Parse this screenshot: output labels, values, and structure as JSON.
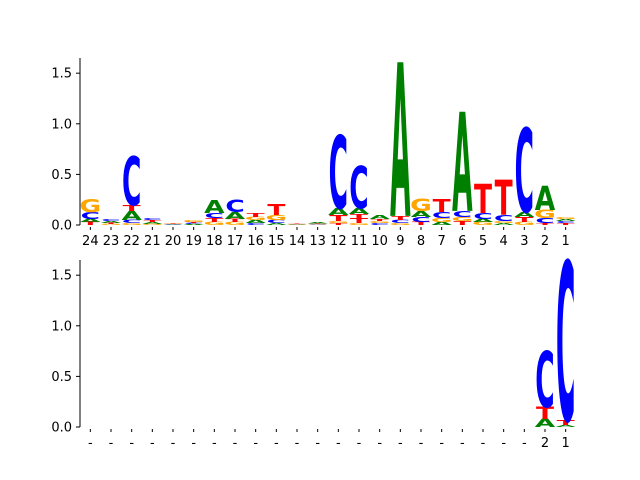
{
  "colors": {
    "A": "#008000",
    "C": "#0000ff",
    "G": "#ffa500",
    "T": "#ff0000"
  },
  "chart_data": [
    {
      "type": "sequence-logo",
      "ylim": [
        0,
        1.65
      ],
      "y_ticks": [
        "0.0",
        "0.5",
        "1.0",
        "1.5"
      ],
      "y_tick_values": [
        0,
        0.5,
        1.0,
        1.5
      ],
      "categories": [
        "24",
        "23",
        "22",
        "21",
        "20",
        "19",
        "18",
        "17",
        "16",
        "15",
        "14",
        "13",
        "12",
        "11",
        "10",
        "9",
        "8",
        "7",
        "6",
        "5",
        "4",
        "3",
        "2",
        "1"
      ],
      "stacks": [
        [
          [
            "T",
            0.03
          ],
          [
            "A",
            0.03
          ],
          [
            "C",
            0.07
          ],
          [
            "G",
            0.13
          ]
        ],
        [
          [
            "G",
            0.01
          ],
          [
            "T",
            0.01
          ],
          [
            "A",
            0.02
          ],
          [
            "C",
            0.02
          ]
        ],
        [
          [
            "G",
            0.02
          ],
          [
            "C",
            0.03
          ],
          [
            "A",
            0.09
          ],
          [
            "T",
            0.06
          ],
          [
            "C",
            0.48
          ]
        ],
        [
          [
            "G",
            0.01
          ],
          [
            "A",
            0.02
          ],
          [
            "T",
            0.02
          ],
          [
            "C",
            0.02
          ]
        ],
        [
          [
            "A",
            0.005
          ],
          [
            "C",
            0.005
          ],
          [
            "G",
            0.005
          ],
          [
            "T",
            0.005
          ]
        ],
        [
          [
            "A",
            0.01
          ],
          [
            "C",
            0.01
          ],
          [
            "T",
            0.01
          ],
          [
            "G",
            0.02
          ]
        ],
        [
          [
            "G",
            0.03
          ],
          [
            "T",
            0.04
          ],
          [
            "C",
            0.05
          ],
          [
            "A",
            0.13
          ]
        ],
        [
          [
            "G",
            0.03
          ],
          [
            "T",
            0.03
          ],
          [
            "A",
            0.07
          ],
          [
            "C",
            0.12
          ]
        ],
        [
          [
            "C",
            0.02
          ],
          [
            "A",
            0.03
          ],
          [
            "G",
            0.03
          ],
          [
            "T",
            0.04
          ]
        ],
        [
          [
            "A",
            0.02
          ],
          [
            "C",
            0.03
          ],
          [
            "G",
            0.05
          ],
          [
            "T",
            0.11
          ]
        ],
        [
          [
            "A",
            0.003
          ],
          [
            "C",
            0.003
          ],
          [
            "G",
            0.003
          ],
          [
            "T",
            0.005
          ]
        ],
        [
          [
            "C",
            0.005
          ],
          [
            "G",
            0.005
          ],
          [
            "T",
            0.005
          ],
          [
            "A",
            0.01
          ]
        ],
        [
          [
            "T",
            0.02
          ],
          [
            "G",
            0.02
          ],
          [
            "T",
            0.06
          ],
          [
            "A",
            0.07
          ],
          [
            "C",
            0.72
          ]
        ],
        [
          [
            "G",
            0.02
          ],
          [
            "T",
            0.05
          ],
          [
            "T",
            0.04
          ],
          [
            "A",
            0.06
          ],
          [
            "C",
            0.42
          ]
        ],
        [
          [
            "C",
            0.02
          ],
          [
            "G",
            0.02
          ],
          [
            "T",
            0.02
          ],
          [
            "A",
            0.04
          ]
        ],
        [
          [
            "G",
            0.02
          ],
          [
            "C",
            0.03
          ],
          [
            "T",
            0.04
          ],
          [
            "A",
            1.52
          ]
        ],
        [
          [
            "T",
            0.03
          ],
          [
            "C",
            0.05
          ],
          [
            "A",
            0.06
          ],
          [
            "G",
            0.12
          ]
        ],
        [
          [
            "A",
            0.03
          ],
          [
            "G",
            0.04
          ],
          [
            "C",
            0.06
          ],
          [
            "T",
            0.13
          ]
        ],
        [
          [
            "T",
            0.04
          ],
          [
            "G",
            0.04
          ],
          [
            "C",
            0.06
          ],
          [
            "A",
            0.98
          ]
        ],
        [
          [
            "G",
            0.03
          ],
          [
            "A",
            0.03
          ],
          [
            "C",
            0.06
          ],
          [
            "T",
            0.29
          ]
        ],
        [
          [
            "A",
            0.02
          ],
          [
            "G",
            0.02
          ],
          [
            "C",
            0.06
          ],
          [
            "T",
            0.35
          ]
        ],
        [
          [
            "G",
            0.03
          ],
          [
            "T",
            0.05
          ],
          [
            "A",
            0.05
          ],
          [
            "C",
            0.83
          ]
        ],
        [
          [
            "T",
            0.02
          ],
          [
            "C",
            0.05
          ],
          [
            "G",
            0.08
          ],
          [
            "A",
            0.24
          ]
        ],
        [
          [
            "T",
            0.02
          ],
          [
            "C",
            0.02
          ],
          [
            "A",
            0.02
          ],
          [
            "G",
            0.02
          ]
        ]
      ]
    },
    {
      "type": "sequence-logo",
      "ylim": [
        0,
        1.65
      ],
      "y_ticks": [
        "0.0",
        "0.5",
        "1.0",
        "1.5"
      ],
      "y_tick_values": [
        0,
        0.5,
        1.0,
        1.5
      ],
      "categories": [
        "-",
        "-",
        "-",
        "-",
        "-",
        "-",
        "-",
        "-",
        "-",
        "-",
        "-",
        "-",
        "-",
        "-",
        "-",
        "-",
        "-",
        "-",
        "-",
        "-",
        "-",
        "-",
        "2",
        "1"
      ],
      "stacks": [
        [],
        [],
        [],
        [],
        [],
        [],
        [],
        [],
        [],
        [],
        [],
        [],
        [],
        [],
        [],
        [],
        [],
        [],
        [],
        [],
        [],
        [],
        [
          [
            "A",
            0.08
          ],
          [
            "T",
            0.12
          ],
          [
            "C",
            0.55
          ]
        ],
        [
          [
            "A",
            0.02
          ],
          [
            "T",
            0.05
          ],
          [
            "C",
            1.57
          ]
        ]
      ]
    }
  ]
}
